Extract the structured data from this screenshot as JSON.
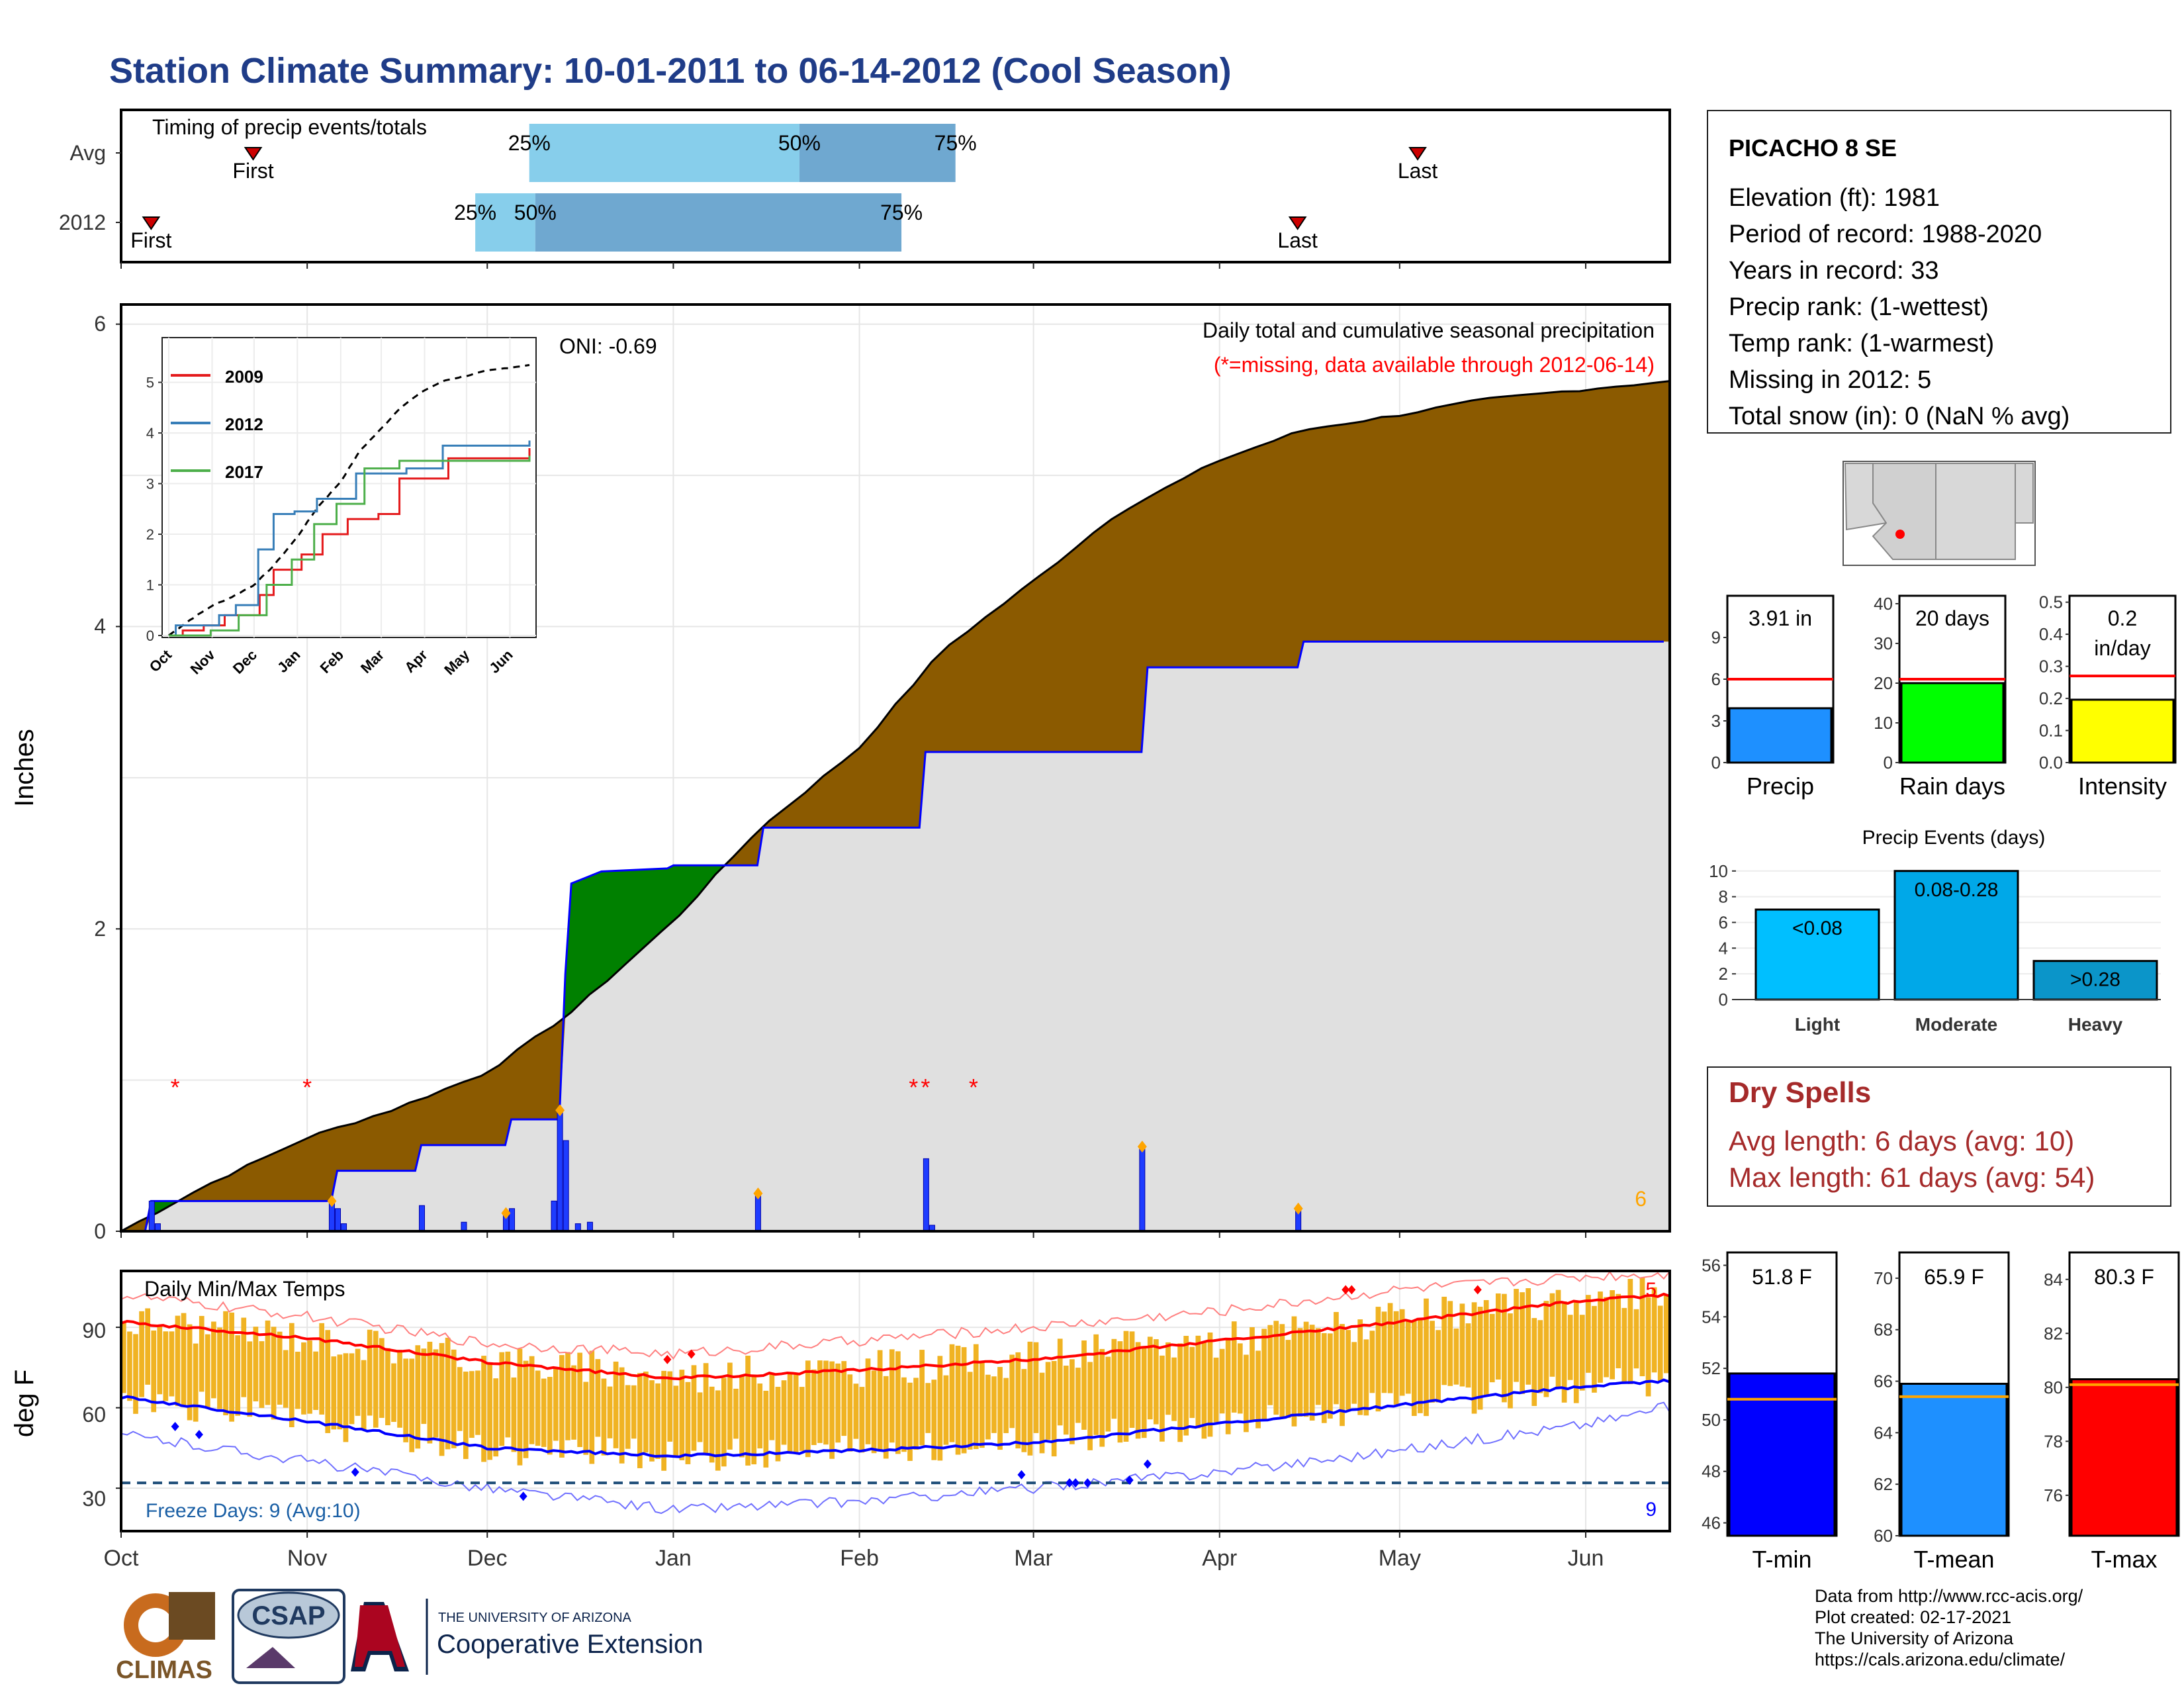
{
  "title": "Station Climate Summary: 10-01-2011 to 06-14-2012 (Cool Season)",
  "timing": {
    "label": "Timing of precip events/totals",
    "rows": [
      {
        "name": "Avg",
        "first_label": "First",
        "last_label": "Last",
        "first_x": "2011-10-23",
        "last_x": "2012-05-04",
        "p25": "2011-12-08",
        "p50": "2012-01-22",
        "p75": "2012-02-17",
        "p25_label": "25%",
        "p50_label": "50%",
        "p75_label": "75%"
      },
      {
        "name": "2012",
        "first_label": "First",
        "last_label": "Last",
        "first_x": "2011-10-06",
        "last_x": "2012-04-14",
        "p25": "2011-11-29",
        "p50": "2011-12-09",
        "p75": "2012-02-08",
        "p25_label": "25%",
        "p50_label": "50%",
        "p75_label": "75%"
      }
    ]
  },
  "precip_panel": {
    "caption": "Daily total and cumulative seasonal precipitation",
    "missing_note": "(*=missing, data available through 2012-06-14)",
    "ylabel": "Inches",
    "yticks": [
      "0",
      "2",
      "4",
      "6"
    ],
    "oni": "ONI: -0.69",
    "count_label": "6"
  },
  "temp_panel": {
    "caption": "Daily Min/Max Temps",
    "ylabel": "deg F",
    "yticks": [
      "30",
      "60",
      "90"
    ],
    "freeze_label": "Freeze Days: 9 (Avg:10)",
    "hot_count": "5",
    "cold_count": "9"
  },
  "months": [
    "Oct",
    "Nov",
    "Dec",
    "Jan",
    "Feb",
    "Mar",
    "Apr",
    "May",
    "Jun"
  ],
  "station": {
    "name": "PICACHO 8 SE",
    "lines": [
      "Elevation (ft): 1981",
      "Period of record: 1988-2020",
      "Years in record: 33",
      "Precip rank:  (1-wettest)",
      "Temp rank:  (1-warmest)",
      "Missing in 2012: 5",
      "Total snow (in): 0 (NaN % avg)"
    ]
  },
  "mini_bars": [
    {
      "label": "Precip",
      "value_text": "3.91 in",
      "value": 3.91,
      "avg": 6.0,
      "ymax": 12,
      "ticks": [
        "0",
        "3",
        "6",
        "9"
      ],
      "tick_values": [
        0,
        3,
        6,
        9
      ],
      "color": "#1e90ff"
    },
    {
      "label": "Rain days",
      "value_text": "20 days",
      "value": 20,
      "avg": 21,
      "ymax": 42,
      "ticks": [
        "0",
        "10",
        "20",
        "30",
        "40"
      ],
      "tick_values": [
        0,
        10,
        20,
        30,
        40
      ],
      "color": "#00ff00"
    },
    {
      "label": "Intensity",
      "value_text": "0.2 in/day",
      "value_line1": "0.2",
      "value_line2": "in/day",
      "value": 0.196,
      "avg": 0.27,
      "ymax": 0.52,
      "ticks": [
        "0.0",
        "0.1",
        "0.2",
        "0.3",
        "0.4",
        "0.5"
      ],
      "tick_values": [
        0,
        0.1,
        0.2,
        0.3,
        0.4,
        0.5
      ],
      "color": "#ffff00"
    }
  ],
  "precip_events": {
    "title": "Precip Events (days)",
    "categories": [
      "Light",
      "Moderate",
      "Heavy"
    ],
    "bar_labels": [
      "<0.08",
      "0.08-0.28",
      ">0.28"
    ],
    "values": [
      7,
      10,
      3
    ],
    "ticks": [
      "0",
      "2",
      "4",
      "6",
      "8",
      "10"
    ],
    "colors": [
      "#00bfff",
      "#00a8e8",
      "#0b95c9"
    ]
  },
  "dry_spells": {
    "title": "Dry Spells",
    "avg_line": "Avg length: 6 days (avg: 10)",
    "max_line": "Max length: 61 days (avg: 54)"
  },
  "temp_bars": [
    {
      "label": "T-min",
      "value_text": "51.8 F",
      "value": 51.8,
      "avg": 50.8,
      "ymin": 45.5,
      "ymax": 56.5,
      "ticks": [
        "46",
        "48",
        "50",
        "52",
        "54",
        "56"
      ],
      "tick_values": [
        46,
        48,
        50,
        52,
        54,
        56
      ],
      "color": "#0000ff"
    },
    {
      "label": "T-mean",
      "value_text": "65.9 F",
      "value": 65.9,
      "avg": 65.4,
      "ymin": 60,
      "ymax": 71,
      "ticks": [
        "60",
        "62",
        "64",
        "66",
        "68",
        "70"
      ],
      "tick_values": [
        60,
        62,
        64,
        66,
        68,
        70
      ],
      "color": "#1e90ff"
    },
    {
      "label": "T-max",
      "value_text": "80.3 F",
      "value": 80.3,
      "avg": 80.1,
      "ymin": 74.5,
      "ymax": 85.0,
      "ticks": [
        "76",
        "78",
        "80",
        "82",
        "84"
      ],
      "tick_values": [
        76,
        78,
        80,
        82,
        84
      ],
      "color": "#ff0000"
    }
  ],
  "inset": {
    "legend": [
      "2009",
      "2012",
      "2017"
    ],
    "legend_colors": [
      "#e41a1c",
      "#377eb8",
      "#4daf4a"
    ],
    "yticks": [
      "0",
      "1",
      "2",
      "3",
      "4",
      "5"
    ],
    "months": [
      "Oct",
      "Nov",
      "Dec",
      "Jan",
      "Feb",
      "Mar",
      "Apr",
      "May",
      "Jun"
    ]
  },
  "footer": {
    "source": [
      "Data from http://www.rcc-acis.org/",
      "Plot created: 02-17-2021",
      "The University of Arizona",
      "https://cals.arizona.edu/climate/"
    ],
    "logo_climas": "CLIMAS",
    "logo_csap": "CSAP",
    "logo_ua_small": "THE UNIVERSITY OF ARIZONA",
    "logo_ua_big": "Cooperative Extension"
  },
  "chart_data": [
    {
      "type": "area",
      "title": "Daily total and cumulative seasonal precipitation",
      "ylabel": "Inches",
      "ylim": [
        0,
        6.1
      ],
      "x_range": [
        "2011-10-01",
        "2012-06-14"
      ],
      "series": [
        {
          "name": "Average",
          "x": [
            "2011-10-01",
            "2011-10-15",
            "2011-11-01",
            "2011-11-15",
            "2011-12-01",
            "2011-12-15",
            "2012-01-01",
            "2012-01-15",
            "2012-02-01",
            "2012-02-15",
            "2012-03-01",
            "2012-03-15",
            "2012-04-01",
            "2012-04-15",
            "2012-05-01",
            "2012-05-15",
            "2012-06-01",
            "2012-06-14"
          ],
          "y": [
            0.0,
            0.3,
            0.62,
            0.8,
            1.05,
            1.45,
            2.05,
            2.65,
            3.2,
            3.85,
            4.3,
            4.75,
            5.1,
            5.3,
            5.4,
            5.5,
            5.57,
            5.62
          ]
        },
        {
          "name": "2012",
          "x": [
            "2011-10-01",
            "2011-10-05",
            "2011-10-06",
            "2011-11-05",
            "2011-11-06",
            "2011-11-19",
            "2011-11-20",
            "2011-12-04",
            "2011-12-05",
            "2011-12-13",
            "2011-12-14",
            "2011-12-15",
            "2011-12-20",
            "2011-12-31",
            "2012-01-01",
            "2012-01-15",
            "2012-01-16",
            "2012-02-11",
            "2012-02-12",
            "2012-03-19",
            "2012-03-20",
            "2012-04-14",
            "2012-04-15",
            "2012-06-14"
          ],
          "y": [
            0.0,
            0.0,
            0.2,
            0.2,
            0.4,
            0.4,
            0.57,
            0.57,
            0.74,
            0.74,
            1.7,
            2.3,
            2.38,
            2.4,
            2.42,
            2.42,
            2.67,
            2.67,
            3.17,
            3.17,
            3.73,
            3.73,
            3.9,
            3.9
          ]
        }
      ],
      "daily_precip": {
        "x": [
          "2011-10-06",
          "2011-10-07",
          "2011-11-05",
          "2011-11-06",
          "2011-11-07",
          "2011-11-20",
          "2011-11-27",
          "2011-12-04",
          "2011-12-05",
          "2011-12-12",
          "2011-12-13",
          "2011-12-14",
          "2011-12-16",
          "2011-12-18",
          "2012-01-15",
          "2012-02-12",
          "2012-02-13",
          "2012-03-19",
          "2012-04-14"
        ],
        "y": [
          0.2,
          0.05,
          0.2,
          0.15,
          0.05,
          0.17,
          0.06,
          0.12,
          0.15,
          0.2,
          0.8,
          0.6,
          0.05,
          0.06,
          0.25,
          0.48,
          0.04,
          0.56,
          0.15
        ]
      },
      "missing_dates": [
        "2011-10-10",
        "2011-11-01",
        "2012-02-10",
        "2012-02-12",
        "2012-02-20"
      ]
    },
    {
      "type": "line",
      "title": "Daily Min/Max Temps",
      "ylabel": "deg F",
      "ylim": [
        14,
        111
      ],
      "x_range": [
        "2011-10-01",
        "2012-06-14"
      ],
      "series": [
        {
          "name": "Avg max",
          "x": [
            "2011-10-01",
            "2011-11-01",
            "2011-12-01",
            "2012-01-01",
            "2012-02-01",
            "2012-03-01",
            "2012-04-01",
            "2012-05-01",
            "2012-06-01",
            "2012-06-14"
          ],
          "y": [
            92,
            86,
            77,
            71,
            74,
            78,
            85,
            92,
            100,
            102
          ]
        },
        {
          "name": "Avg min",
          "x": [
            "2011-10-01",
            "2011-11-01",
            "2011-12-01",
            "2012-01-01",
            "2012-02-01",
            "2012-03-01",
            "2012-04-01",
            "2012-05-01",
            "2012-06-01",
            "2012-06-14"
          ],
          "y": [
            64,
            55,
            45,
            42,
            44,
            47,
            54,
            61,
            68,
            70
          ]
        },
        {
          "name": "Record high",
          "x": [
            "2011-10-01",
            "2011-11-01",
            "2011-12-01",
            "2012-01-01",
            "2012-02-01",
            "2012-03-01",
            "2012-04-01",
            "2012-05-01",
            "2012-06-01",
            "2012-06-14"
          ],
          "y": [
            102,
            94,
            84,
            80,
            85,
            90,
            96,
            104,
            109,
            110
          ]
        },
        {
          "name": "Record low",
          "x": [
            "2011-10-01",
            "2011-11-01",
            "2011-12-01",
            "2012-01-01",
            "2012-02-01",
            "2012-03-01",
            "2012-04-01",
            "2012-05-01",
            "2012-06-01",
            "2012-06-14"
          ],
          "y": [
            50,
            40,
            30,
            22,
            25,
            30,
            36,
            44,
            54,
            60
          ]
        }
      ],
      "freeze_threshold": 32
    }
  ]
}
